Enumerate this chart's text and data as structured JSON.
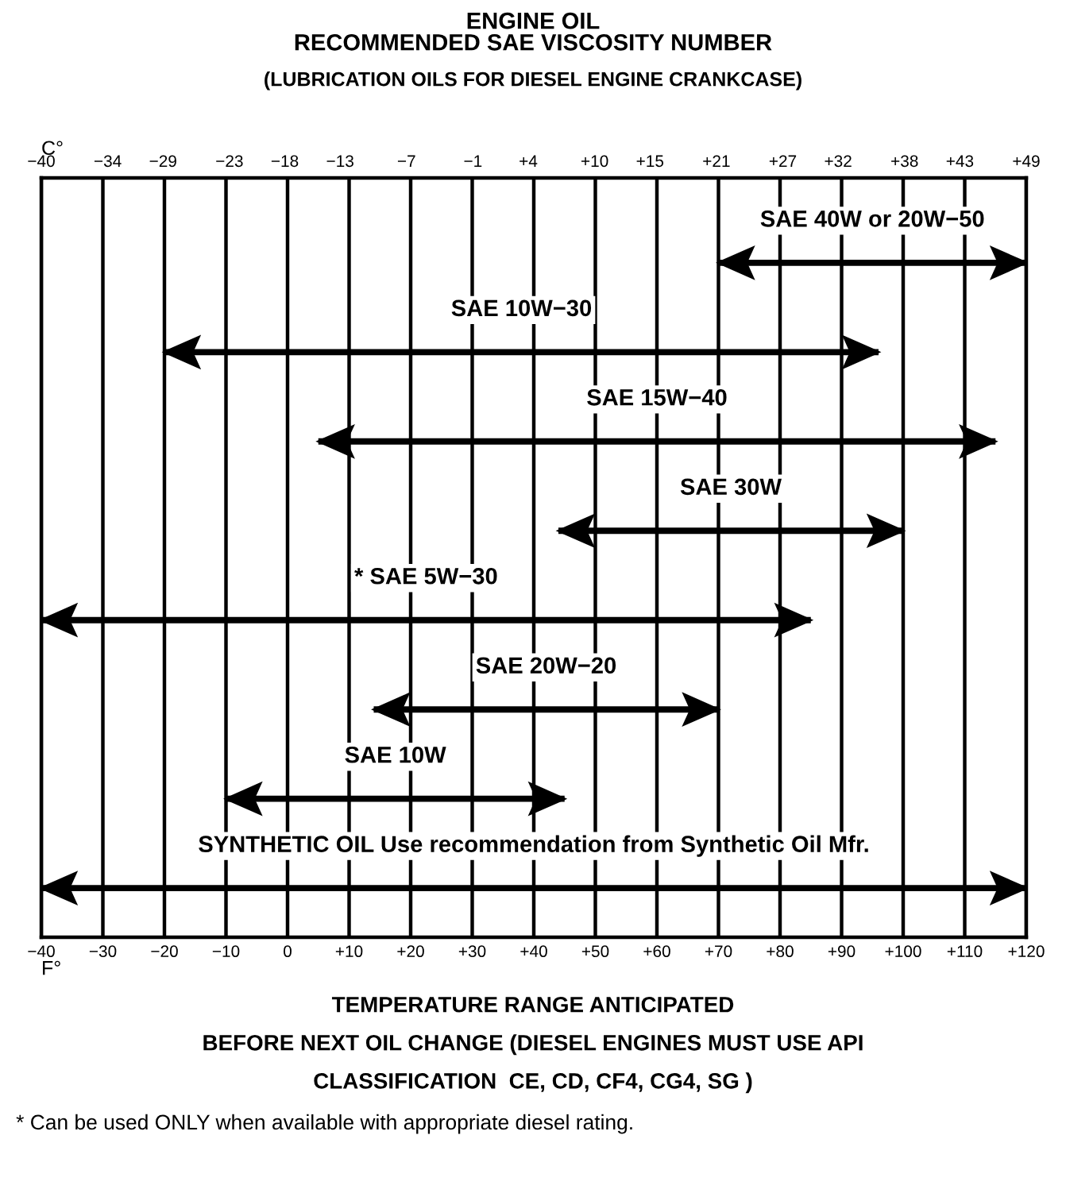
{
  "chart_data": {
    "type": "bar",
    "orientation": "horizontal",
    "title": "ENGINE OIL\nRECOMMENDED SAE VISCOSITY NUMBER",
    "subtitle": "(LUBRICATION OILS FOR DIESEL ENGINE CRANKCASE)",
    "categories": [
      "SAE 40W or 20W−50",
      "SAE 10W−30",
      "SAE 15W−40",
      "SAE 30W",
      "* SAE 5W−30",
      "SAE 20W−20",
      "SAE 10W",
      "SYNTHETIC OIL Use recommendation from Synthetic Oil Mfr."
    ],
    "base": [
      70,
      -20,
      5,
      44,
      -40,
      14,
      -10,
      -40
    ],
    "values": [
      50,
      116,
      110,
      56,
      125,
      56,
      55,
      160
    ],
    "color": "#000000",
    "xlabel": "F°",
    "x2label": "C°",
    "xlim": [
      -40,
      120
    ],
    "xticks": [
      {
        "value": -40,
        "label": "−40"
      },
      {
        "value": -30,
        "label": "−30"
      },
      {
        "value": -20,
        "label": "−20"
      },
      {
        "value": -10,
        "label": "−10"
      },
      0,
      {
        "value": 10,
        "label": "+10"
      },
      {
        "value": 20,
        "label": "+20"
      },
      {
        "value": 30,
        "label": "+30"
      },
      {
        "value": 40,
        "label": "+40"
      },
      {
        "value": 50,
        "label": "+50"
      },
      {
        "value": 60,
        "label": "+60"
      },
      {
        "value": 70,
        "label": "+70"
      },
      {
        "value": 80,
        "label": "+80"
      },
      {
        "value": 90,
        "label": "+90"
      },
      {
        "value": 100,
        "label": "+100"
      },
      {
        "value": 110,
        "label": "+110"
      },
      {
        "value": 120,
        "label": "+120"
      }
    ],
    "x2lim": [
      -40,
      49
    ],
    "x2ticks": [
      {
        "value": -40,
        "label": "−40"
      },
      {
        "value": -34,
        "label": "−34"
      },
      {
        "value": -29,
        "label": "−29"
      },
      {
        "value": -23,
        "label": "−23"
      },
      {
        "value": -18,
        "label": "−18"
      },
      {
        "value": -13,
        "label": "−13"
      },
      {
        "value": -7,
        "label": "−7"
      },
      {
        "value": -1,
        "label": "−1"
      },
      {
        "value": 4,
        "label": "+4"
      },
      {
        "value": 10,
        "label": "+10"
      },
      {
        "value": 15,
        "label": "+15"
      },
      {
        "value": 21,
        "label": "+21"
      },
      {
        "value": 27,
        "label": "+27"
      },
      {
        "value": 32,
        "label": "+32"
      },
      {
        "value": 38,
        "label": "+38"
      },
      {
        "value": 43,
        "label": "+43"
      },
      {
        "value": 49,
        "label": "+49"
      }
    ],
    "grid": "x",
    "tick_labels": "x",
    "annotations": [
      "TEMPERATURE RANGE ANTICIPATED",
      "BEFORE NEXT OIL CHANGE (DIESEL ENGINES MUST USE API",
      "CLASSIFICATION  CE, CD, CF4, CG4, SG )",
      "* Can be used ONLY when available with appropriate diesel rating."
    ]
  }
}
